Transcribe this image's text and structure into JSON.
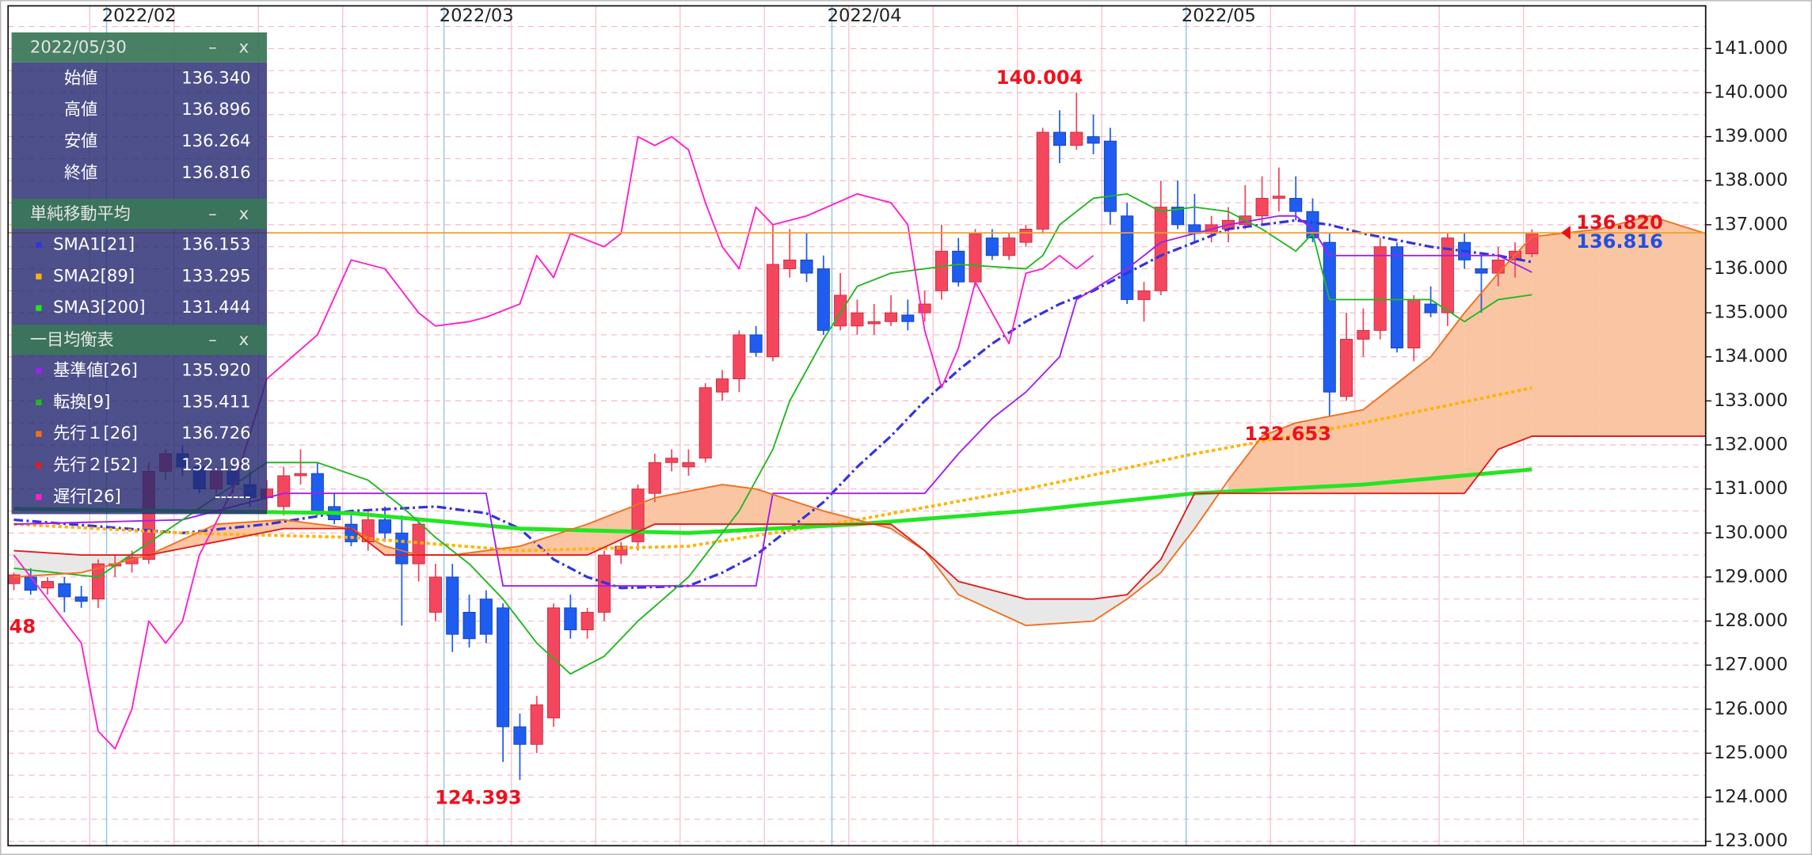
{
  "chart_data": {
    "type": "candlestick",
    "xlim": [
      -0.34,
      100.3
    ],
    "ylim": [
      122.9,
      141.97
    ],
    "xticks": [
      {
        "value": 5.5,
        "label": "2022/02"
      },
      {
        "value": 25.5,
        "label": "2022/03"
      },
      {
        "value": 48.5,
        "label": "2022/04"
      },
      {
        "value": 69.5,
        "label": "2022/05"
      }
    ],
    "xminor": [
      4.5,
      9.5,
      14.5,
      19.5,
      24.5,
      29.5,
      34.5,
      39.5,
      44.5,
      49.5,
      54.5,
      59.5,
      64.5,
      69.5,
      74.5,
      79.5,
      84.5,
      89.5
    ],
    "yticks": [
      {
        "value": 123,
        "label": "123.000"
      },
      {
        "value": 124,
        "label": "124.000"
      },
      {
        "value": 125,
        "label": "125.000"
      },
      {
        "value": 126,
        "label": "126.000"
      },
      {
        "value": 127,
        "label": "127.000"
      },
      {
        "value": 128,
        "label": "128.000"
      },
      {
        "value": 129,
        "label": "129.000"
      },
      {
        "value": 130,
        "label": "130.000"
      },
      {
        "value": 131,
        "label": "131.000"
      },
      {
        "value": 132,
        "label": "132.000"
      },
      {
        "value": 133,
        "label": "133.000"
      },
      {
        "value": 134,
        "label": "134.000"
      },
      {
        "value": 135,
        "label": "135.000"
      },
      {
        "value": 136,
        "label": "136.000"
      },
      {
        "value": 137,
        "label": "137.000"
      },
      {
        "value": 138,
        "label": "138.000"
      },
      {
        "value": 139,
        "label": "139.000"
      },
      {
        "value": 140,
        "label": "140.000"
      },
      {
        "value": 141,
        "label": "141.000"
      }
    ],
    "minor_yticks": [
      123.5,
      124.5,
      125.5,
      126.5,
      127.5,
      128.5,
      129.5,
      130.5,
      131.5,
      132.5,
      133.5,
      134.5,
      135.5,
      136.5,
      137.5,
      138.5,
      139.5,
      140.5,
      141.5
    ],
    "grid": true,
    "up_color": "#f4475d",
    "down_color": "#1f5cf0",
    "candles": {
      "open": [
        128.85,
        129.0,
        128.75,
        128.85,
        128.55,
        128.5,
        129.25,
        129.3,
        129.4,
        131.4,
        131.8,
        131.5,
        131.0,
        131.4,
        131.1,
        130.8,
        130.6,
        131.3,
        131.35,
        130.6,
        130.2,
        129.8,
        130.3,
        130.0,
        129.3,
        128.2,
        129.0,
        128.2,
        128.5,
        128.3,
        125.6,
        125.2,
        125.8,
        128.3,
        127.8,
        128.2,
        129.5,
        129.8,
        130.9,
        131.6,
        131.5,
        131.7,
        133.2,
        133.5,
        134.5,
        134.0,
        136.0,
        136.2,
        136.0,
        134.7,
        134.7,
        134.75,
        134.8,
        134.95,
        135.0,
        135.5,
        136.4,
        135.7,
        136.7,
        136.3,
        136.6,
        136.9,
        139.1,
        138.8,
        139.0,
        138.9,
        137.2,
        135.3,
        135.5,
        137.4,
        137.0,
        136.8,
        136.9,
        137.0,
        137.2,
        137.6,
        137.6,
        137.3,
        136.6,
        133.1,
        134.4,
        134.6,
        136.5,
        134.2,
        135.2,
        135.0,
        136.6,
        136.0,
        135.9,
        136.2,
        136.34
      ],
      "high": [
        129.1,
        129.2,
        129.0,
        129.0,
        128.8,
        129.4,
        129.5,
        129.6,
        131.6,
        131.9,
        132.0,
        131.7,
        131.5,
        131.6,
        131.4,
        131.2,
        131.5,
        131.9,
        131.6,
        130.9,
        130.5,
        130.5,
        130.6,
        130.4,
        130.3,
        129.3,
        129.3,
        128.6,
        128.7,
        128.4,
        125.9,
        126.3,
        128.4,
        128.6,
        128.3,
        129.6,
        129.8,
        131.1,
        131.8,
        131.9,
        131.9,
        133.4,
        133.7,
        134.6,
        134.7,
        137.0,
        136.9,
        136.8,
        136.3,
        135.9,
        135.3,
        135.2,
        135.4,
        135.3,
        135.5,
        137.0,
        136.7,
        136.9,
        136.9,
        136.8,
        137.0,
        139.2,
        139.6,
        140.004,
        139.5,
        139.2,
        137.5,
        135.7,
        138.0,
        138.0,
        137.7,
        137.2,
        137.4,
        137.9,
        138.1,
        138.3,
        138.1,
        137.6,
        136.8,
        135.0,
        135.1,
        136.7,
        136.6,
        135.4,
        135.6,
        136.8,
        136.8,
        136.3,
        136.5,
        136.6,
        136.896
      ],
      "low": [
        128.7,
        128.6,
        128.6,
        128.2,
        128.3,
        128.3,
        129.0,
        129.1,
        129.3,
        131.2,
        131.3,
        130.9,
        130.8,
        130.9,
        130.6,
        130.5,
        130.4,
        131.1,
        130.4,
        130.2,
        129.7,
        129.6,
        129.8,
        127.9,
        128.9,
        128.0,
        127.3,
        127.4,
        127.5,
        124.8,
        124.393,
        125.0,
        125.6,
        127.6,
        127.6,
        128.0,
        129.3,
        129.6,
        130.7,
        131.4,
        131.3,
        131.6,
        133.0,
        133.2,
        134.0,
        133.9,
        135.8,
        135.7,
        134.5,
        134.6,
        134.5,
        134.5,
        134.7,
        134.6,
        134.8,
        135.3,
        135.6,
        135.6,
        136.2,
        136.2,
        136.5,
        136.8,
        138.4,
        138.7,
        138.6,
        137.0,
        135.2,
        134.8,
        135.4,
        136.9,
        136.6,
        136.6,
        136.6,
        136.9,
        137.0,
        137.3,
        137.1,
        136.6,
        132.653,
        133.0,
        134.0,
        134.4,
        134.1,
        133.9,
        134.9,
        134.7,
        136.0,
        135.0,
        135.6,
        135.8,
        136.264
      ],
      "close": [
        129.05,
        128.7,
        128.9,
        128.55,
        128.45,
        129.3,
        129.3,
        129.45,
        131.4,
        131.8,
        131.5,
        131.0,
        131.4,
        131.1,
        130.8,
        131.0,
        131.3,
        131.35,
        130.5,
        130.3,
        129.8,
        130.3,
        130.0,
        129.3,
        130.2,
        129.0,
        127.7,
        127.6,
        127.7,
        125.6,
        125.2,
        126.1,
        128.3,
        127.8,
        128.2,
        129.5,
        129.7,
        131.0,
        131.6,
        131.7,
        131.6,
        133.3,
        133.5,
        134.5,
        134.1,
        136.1,
        136.2,
        135.9,
        134.6,
        135.4,
        135.0,
        134.8,
        135.0,
        134.8,
        135.2,
        136.4,
        135.7,
        136.8,
        136.3,
        136.7,
        136.9,
        139.1,
        138.8,
        139.1,
        138.85,
        137.3,
        135.3,
        135.5,
        137.4,
        137.0,
        136.8,
        137.0,
        137.1,
        137.2,
        137.6,
        137.65,
        137.3,
        136.7,
        133.2,
        134.4,
        134.6,
        136.5,
        134.2,
        135.3,
        135.0,
        136.7,
        136.2,
        135.9,
        136.2,
        136.4,
        136.816
      ]
    },
    "sma_title": "単純移動平均",
    "sma": [
      {
        "name": "SMA1[21]",
        "legend_value": "136.153",
        "color": "#3434dc",
        "style": "dashdot",
        "x": [
          0,
          5,
          10,
          15,
          20,
          25,
          28,
          30,
          32,
          34,
          36,
          40,
          42,
          44,
          46,
          48,
          50,
          52,
          54,
          56,
          58,
          60,
          62,
          64,
          66,
          68,
          70,
          72,
          74,
          76,
          78,
          80,
          84,
          88,
          90
        ],
        "values": [
          130.3,
          130.15,
          130.0,
          130.2,
          130.5,
          130.6,
          130.45,
          130.1,
          129.4,
          129.0,
          128.75,
          128.8,
          129.1,
          129.5,
          130.1,
          130.7,
          131.5,
          132.2,
          133.0,
          133.7,
          134.3,
          134.8,
          135.2,
          135.5,
          135.9,
          136.3,
          136.6,
          136.9,
          137.0,
          137.1,
          137.0,
          136.8,
          136.5,
          136.3,
          136.153
        ]
      },
      {
        "name": "SMA2[89]",
        "legend_value": "133.295",
        "color": "#ffb400",
        "style": "dotted",
        "x": [
          0,
          10,
          20,
          30,
          40,
          50,
          60,
          70,
          80,
          90
        ],
        "values": [
          130.2,
          130.0,
          129.9,
          129.6,
          129.7,
          130.3,
          131.0,
          131.8,
          132.5,
          133.295
        ]
      },
      {
        "name": "SMA3[200]",
        "legend_value": "131.444",
        "color": "#22e622",
        "style": "thick",
        "x": [
          0,
          10,
          20,
          30,
          40,
          50,
          60,
          70,
          80,
          90
        ],
        "values": [
          130.55,
          130.5,
          130.45,
          130.1,
          130.0,
          130.2,
          130.5,
          130.9,
          131.1,
          131.444
        ]
      }
    ],
    "ichimoku_title": "一目均衡表",
    "cloud_colors": [
      "#fac5a2",
      "#e8e8e8"
    ],
    "ichimoku": [
      {
        "name": "基準値[26]",
        "legend_value": "135.920",
        "color": "#a020f0",
        "style": "solid",
        "x": [
          0,
          10,
          16,
          20,
          28,
          29,
          30,
          44,
          45,
          54,
          56,
          58,
          60,
          62,
          63,
          66,
          68,
          72,
          75,
          76,
          77,
          78,
          88,
          90
        ],
        "values": [
          130.2,
          130.3,
          130.9,
          130.9,
          130.9,
          128.8,
          128.8,
          128.8,
          130.9,
          130.9,
          131.8,
          132.6,
          133.2,
          134.0,
          135.3,
          136.0,
          136.6,
          137.0,
          137.2,
          137.2,
          136.9,
          136.3,
          136.3,
          135.92
        ]
      },
      {
        "name": "転換[9]",
        "legend_value": "135.411",
        "color": "#22b822",
        "style": "solid",
        "x": [
          0,
          5,
          10,
          15,
          18,
          21,
          23,
          25,
          27,
          29,
          31,
          33,
          35,
          37,
          40,
          43,
          45,
          46,
          48,
          50,
          52,
          56,
          60,
          61,
          62,
          64,
          66,
          68,
          70,
          72,
          74,
          76,
          77,
          78,
          84,
          86,
          88,
          90
        ],
        "values": [
          129.2,
          129.0,
          130.3,
          131.6,
          131.6,
          131.2,
          130.6,
          129.9,
          129.3,
          128.5,
          127.5,
          126.8,
          127.2,
          128.0,
          129.0,
          130.5,
          131.9,
          133.0,
          134.4,
          135.6,
          135.9,
          136.1,
          136.0,
          136.3,
          137.0,
          137.6,
          137.7,
          137.3,
          137.4,
          137.3,
          136.9,
          136.4,
          136.8,
          135.3,
          135.3,
          134.8,
          135.3,
          135.411
        ]
      },
      {
        "name": "先行１[26]",
        "legend_value": "136.726",
        "color": "#f07020",
        "style": "solid",
        "x": [
          0,
          4,
          8,
          12,
          16,
          20,
          22,
          24,
          26,
          28,
          30,
          34,
          38,
          42,
          44,
          48,
          52,
          54,
          56,
          60,
          64,
          66,
          68,
          70,
          72,
          74,
          76,
          80,
          84,
          86,
          88,
          90,
          94,
          97,
          100.3
        ],
        "values": [
          129.0,
          129.1,
          129.5,
          130.2,
          130.3,
          130.1,
          129.7,
          129.5,
          129.5,
          129.6,
          129.7,
          130.2,
          130.8,
          131.1,
          131.0,
          130.5,
          130.1,
          129.6,
          128.6,
          127.9,
          128.0,
          128.5,
          129.1,
          130.1,
          131.2,
          132.2,
          132.5,
          132.8,
          134.0,
          135.0,
          135.9,
          136.726,
          136.9,
          137.2,
          136.8
        ]
      },
      {
        "name": "先行２[52]",
        "legend_value": "132.198",
        "color": "#e01e1e",
        "style": "solid",
        "x": [
          0,
          4,
          8,
          12,
          16,
          20,
          22,
          24,
          26,
          28,
          30,
          34,
          38,
          42,
          44,
          48,
          52,
          54,
          56,
          60,
          64,
          66,
          68,
          70,
          72,
          74,
          76,
          80,
          84,
          86,
          88,
          90,
          94,
          97,
          100.3
        ],
        "values": [
          129.6,
          129.5,
          129.5,
          129.8,
          130.1,
          130.1,
          129.5,
          129.5,
          129.5,
          129.5,
          129.5,
          129.5,
          130.2,
          130.2,
          130.2,
          130.2,
          130.2,
          129.6,
          128.9,
          128.5,
          128.5,
          128.6,
          129.4,
          130.9,
          130.9,
          130.9,
          130.9,
          130.9,
          130.9,
          130.9,
          131.9,
          132.198,
          132.198,
          132.198,
          132.198
        ]
      },
      {
        "name": "遅行[26]",
        "legend_value": "------",
        "color": "#ff20c8",
        "style": "solid",
        "x": [
          0,
          2,
          4,
          5,
          6,
          7,
          8,
          9,
          10,
          11,
          13,
          15,
          18,
          20,
          22,
          24,
          25,
          27,
          28,
          30,
          31,
          32,
          33,
          35,
          36,
          37,
          38,
          39,
          40,
          41,
          42,
          43,
          44,
          45,
          47,
          50,
          52,
          53,
          54,
          55,
          56,
          57,
          59,
          60,
          61,
          62,
          63,
          64
        ],
        "values": [
          129.5,
          128.5,
          127.5,
          125.5,
          125.1,
          126.0,
          128.0,
          127.5,
          128.0,
          129.5,
          131.0,
          133.5,
          134.5,
          136.2,
          136.0,
          135.0,
          134.7,
          134.8,
          134.9,
          135.2,
          136.3,
          135.8,
          136.8,
          136.5,
          136.8,
          139.0,
          138.8,
          139.0,
          138.7,
          137.5,
          136.5,
          136.0,
          137.4,
          137.0,
          137.2,
          137.7,
          137.5,
          137.0,
          134.6,
          133.3,
          134.2,
          135.7,
          134.3,
          135.9,
          136.0,
          136.3,
          136.0,
          136.3
        ]
      }
    ],
    "current_price": {
      "value": 136.816,
      "color": "#f0a030"
    },
    "price_markers": [
      {
        "value": 136.82,
        "label": "136.820",
        "color": "#e8101e"
      },
      {
        "value": 136.816,
        "label": "136.816",
        "color": "#1f4fe6"
      }
    ],
    "annotations": [
      {
        "index": 63,
        "value": 140.004,
        "label": "140.004",
        "position": "above"
      },
      {
        "index": 30,
        "value": 124.393,
        "label": "124.393",
        "position": "below"
      },
      {
        "index": 78,
        "value": 132.653,
        "label": "132.653",
        "position": "below"
      }
    ],
    "edge_label": "48",
    "info_panel": {
      "date": "2022/05/30",
      "buttons": [
        "–",
        "x"
      ],
      "ohlc": [
        {
          "label": "始値",
          "value": "136.340"
        },
        {
          "label": "高値",
          "value": "136.896"
        },
        {
          "label": "安値",
          "value": "136.264"
        },
        {
          "label": "終値",
          "value": "136.816"
        }
      ]
    }
  }
}
